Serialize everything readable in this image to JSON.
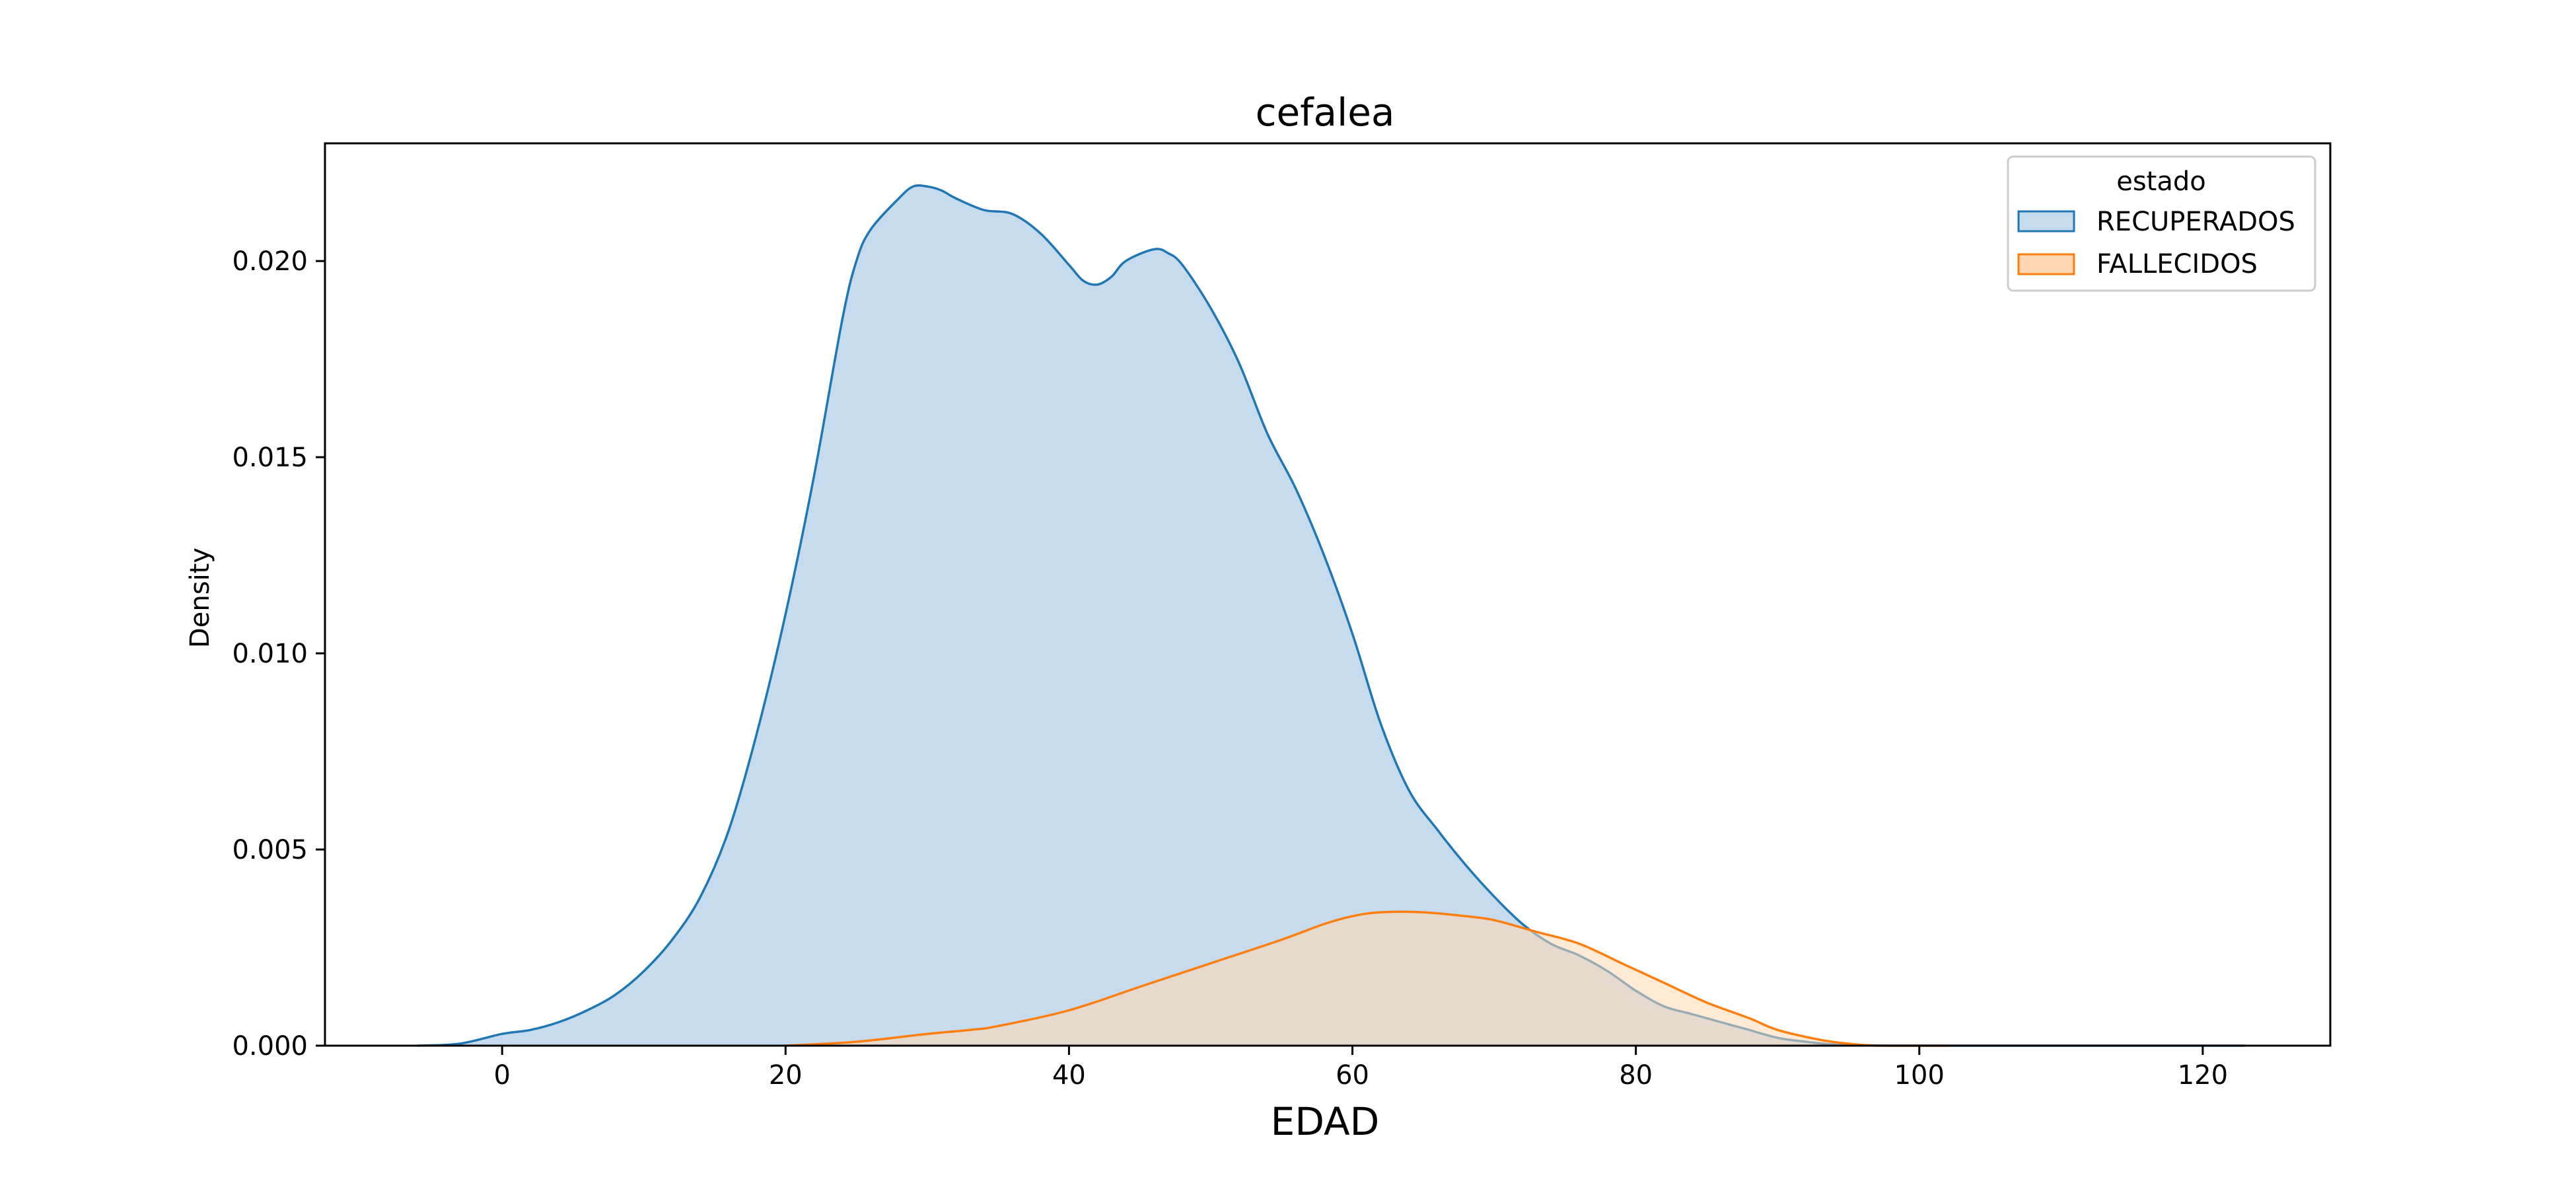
{
  "chart_data": {
    "type": "area",
    "title": "cefalea",
    "xlabel": "EDAD",
    "ylabel": "Density",
    "xlim": [
      -12.5,
      129
    ],
    "ylim": [
      0,
      0.023
    ],
    "x_ticks": [
      0,
      20,
      40,
      60,
      80,
      100,
      120
    ],
    "y_ticks": [
      0.0,
      0.005,
      0.01,
      0.015,
      0.02
    ],
    "y_tick_labels": [
      "0.000",
      "0.005",
      "0.010",
      "0.015",
      "0.020"
    ],
    "grid": false,
    "legend": {
      "title": "estado",
      "position": "top-right"
    },
    "series": [
      {
        "name": "RECUPERADOS",
        "color": "#1f77b4",
        "fill": "#c6dbed",
        "x": [
          -6,
          -3,
          0,
          2,
          4,
          6,
          8,
          10,
          12,
          14,
          16,
          18,
          20,
          22,
          24,
          25,
          26,
          28,
          29,
          30,
          31,
          32,
          34,
          36,
          38,
          40,
          41,
          42,
          43,
          44,
          46,
          47,
          48,
          50,
          52,
          54,
          56,
          58,
          60,
          62,
          64,
          66,
          68,
          70,
          72,
          74,
          76,
          78,
          80,
          82,
          84,
          86,
          88,
          90,
          92,
          94,
          96,
          98,
          100,
          105,
          110,
          115,
          120,
          123
        ],
        "y": [
          0.0,
          5e-05,
          0.0003,
          0.0004,
          0.0006,
          0.0009,
          0.0013,
          0.0019,
          0.0027,
          0.0038,
          0.0055,
          0.008,
          0.011,
          0.0145,
          0.0185,
          0.02,
          0.0208,
          0.0216,
          0.0219,
          0.0219,
          0.0218,
          0.0216,
          0.0213,
          0.0212,
          0.0207,
          0.0199,
          0.0195,
          0.0194,
          0.0196,
          0.02,
          0.0203,
          0.0202,
          0.0199,
          0.0188,
          0.0174,
          0.0156,
          0.0142,
          0.0125,
          0.0105,
          0.0082,
          0.0065,
          0.0055,
          0.0046,
          0.0038,
          0.0031,
          0.0026,
          0.0023,
          0.0019,
          0.0014,
          0.001,
          0.0008,
          0.0006,
          0.0004,
          0.0002,
          0.0001,
          3e-05,
          1e-05,
          0.0,
          0.0,
          0.0,
          0.0,
          0.0,
          0.0,
          0.0
        ]
      },
      {
        "name": "FALLECIDOS",
        "color": "#ff7f0e",
        "fill": "#ffd8b3",
        "x": [
          20,
          25,
          30,
          33,
          35,
          40,
          45,
          50,
          55,
          58,
          60,
          62,
          65,
          68,
          70,
          73,
          76,
          79,
          82,
          85,
          88,
          90,
          93,
          95,
          97,
          100,
          102
        ],
        "y": [
          0.0,
          0.0001,
          0.0003,
          0.0004,
          0.0005,
          0.0009,
          0.0015,
          0.0021,
          0.0027,
          0.0031,
          0.0033,
          0.0034,
          0.0034,
          0.0033,
          0.0032,
          0.0029,
          0.0026,
          0.0021,
          0.0016,
          0.0011,
          0.0007,
          0.0004,
          0.00015,
          5e-05,
          0.0,
          0.0,
          0.0
        ]
      }
    ]
  }
}
